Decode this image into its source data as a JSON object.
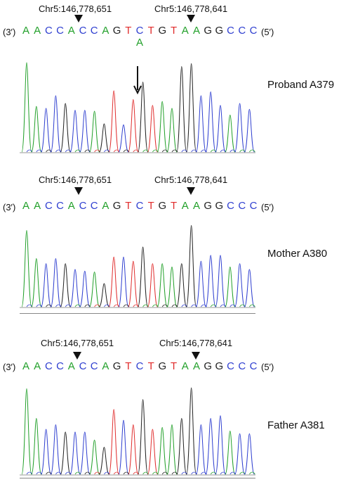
{
  "colors": {
    "A": "#22a02a",
    "C": "#2f3fd0",
    "G": "#222222",
    "T": "#e02d2d"
  },
  "strand_5": "(5′)",
  "strand_3": "(3′)",
  "panels": [
    {
      "sample": "Proband A379",
      "marker_left": "Chr5:146,778,651",
      "marker_right": "Chr5:146,778,641",
      "sequence": [
        "A",
        "A",
        "C",
        "C",
        "A",
        "C",
        "C",
        "A",
        "G",
        "T",
        "C",
        "T",
        "G",
        "T",
        "A",
        "A",
        "G",
        "G",
        "C",
        "C",
        "C"
      ],
      "variant_base": "A",
      "variant_index": 10,
      "peaks": [
        0.92,
        0.47,
        0.45,
        0.58,
        0.5,
        0.43,
        0.43,
        0.42,
        0.29,
        0.63,
        0.28,
        0.54,
        0.72,
        0.48,
        0.52,
        0.45,
        0.88,
        0.91,
        0.58,
        0.62,
        0.48,
        0.38,
        0.5,
        0.44
      ],
      "has_arrow": true
    },
    {
      "sample": "Mother A380",
      "marker_left": "Chr5:146,778,651",
      "marker_right": "Chr5:146,778,641",
      "sequence": [
        "A",
        "A",
        "C",
        "C",
        "A",
        "C",
        "C",
        "A",
        "G",
        "T",
        "C",
        "T",
        "G",
        "T",
        "A",
        "A",
        "G",
        "G",
        "C",
        "C",
        "C"
      ],
      "peaks": [
        0.92,
        0.58,
        0.52,
        0.58,
        0.52,
        0.45,
        0.43,
        0.42,
        0.28,
        0.6,
        0.6,
        0.55,
        0.72,
        0.52,
        0.52,
        0.48,
        0.52,
        0.98,
        0.55,
        0.62,
        0.62,
        0.48,
        0.52,
        0.45
      ],
      "has_arrow": false
    },
    {
      "sample": "Father A381",
      "marker_left": "Chr5:146,778,651",
      "marker_right": "Chr5:146,778,641",
      "sequence": [
        "A",
        "A",
        "C",
        "C",
        "A",
        "C",
        "C",
        "A",
        "G",
        "T",
        "C",
        "T",
        "G",
        "T",
        "A",
        "A",
        "G",
        "G",
        "C",
        "C",
        "C"
      ],
      "peaks": [
        0.95,
        0.62,
        0.5,
        0.55,
        0.47,
        0.47,
        0.47,
        0.38,
        0.3,
        0.72,
        0.6,
        0.55,
        0.83,
        0.5,
        0.52,
        0.55,
        0.62,
        0.96,
        0.55,
        0.62,
        0.65,
        0.48,
        0.45,
        0.45
      ],
      "has_arrow": false
    }
  ]
}
